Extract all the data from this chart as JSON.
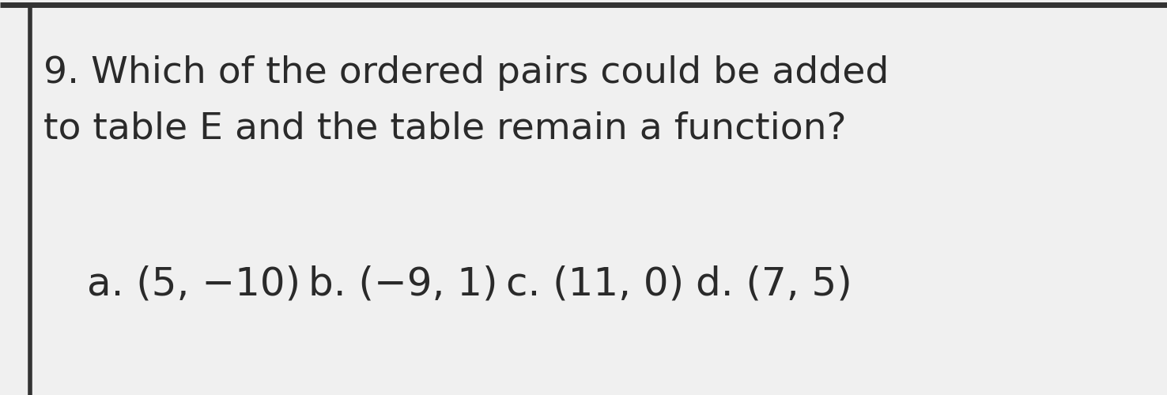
{
  "background_color": "#f0f0f0",
  "border_left_color": "#333333",
  "border_top_color": "#333333",
  "line1": "9. Which of the ordered pairs could be added",
  "line2": "to table E and the table remain a function?",
  "answer_a": "a. (5, −10)",
  "answer_b": "b. (−9, 1)",
  "answer_c": "c. (11, 0)",
  "answer_d": "d. (7, 5)",
  "text_color": "#2a2a2a",
  "title_fontsize": 34,
  "answer_fontsize": 36
}
